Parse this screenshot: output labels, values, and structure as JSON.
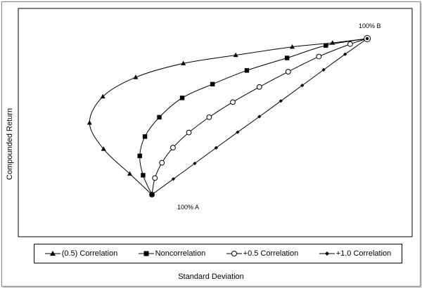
{
  "chart_data": {
    "type": "line",
    "title": "",
    "xlabel": "Standard Deviation",
    "ylabel": "Compounded Return",
    "xlim": [
      0,
      100
    ],
    "ylim": [
      0,
      100
    ],
    "grid": false,
    "legend_placement": "bottom",
    "annotations": [
      {
        "text": "100% A",
        "x": 38.1,
        "y": 0
      },
      {
        "text": "100% B",
        "x": 96.4,
        "y": 100
      }
    ],
    "series": [
      {
        "name": "(0.5) Correlation",
        "marker": "triangle",
        "x": [
          38.1,
          32.1,
          25.0,
          21.2,
          24.8,
          33.7,
          46.6,
          60.8,
          76.1,
          87.0,
          96.4
        ],
        "y": [
          0,
          13.3,
          29.2,
          46.0,
          62.8,
          75.2,
          84.1,
          89.4,
          94.7,
          97.3,
          100
        ]
      },
      {
        "name": "Noncorrelation",
        "marker": "square",
        "x": [
          38.1,
          35.7,
          34.8,
          36.2,
          40.1,
          46.3,
          54.5,
          63.8,
          74.7,
          85.2,
          96.4
        ],
        "y": [
          0,
          12.4,
          24.8,
          37.2,
          49.6,
          62.0,
          70.8,
          79.6,
          87.6,
          95.6,
          100
        ]
      },
      {
        "name": "+0.5 Correlation",
        "marker": "circle-open",
        "x": [
          38.1,
          38.9,
          40.8,
          43.8,
          48.1,
          53.6,
          60.0,
          67.2,
          75.0,
          83.3,
          91.8,
          96.4
        ],
        "y": [
          0,
          10.6,
          20.4,
          30.1,
          39.8,
          49.6,
          59.3,
          69.0,
          78.8,
          88.5,
          96.5,
          100
        ]
      },
      {
        "name": "+1.0 Correlation",
        "marker": "diamond",
        "x": [
          38.1,
          43.9,
          49.7,
          55.5,
          61.3,
          67.2,
          73.0,
          78.8,
          84.6,
          90.4,
          96.4
        ],
        "y": [
          0,
          10,
          20,
          30,
          40,
          50,
          60,
          70,
          80,
          90,
          100
        ]
      }
    ]
  }
}
